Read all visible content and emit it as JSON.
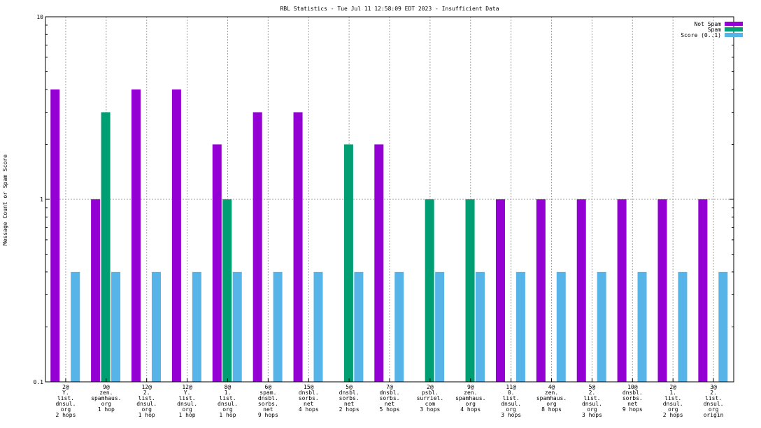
{
  "chart_data": {
    "type": "bar",
    "title": "RBL Statistics - Tue Jul 11 12:58:09 EDT 2023 - Insufficient Data",
    "xlabel": "",
    "ylabel": "Message Count or Spam Score",
    "yscale": "log",
    "ylim": [
      0.1,
      10
    ],
    "yticks": [
      "0.1",
      "1",
      "10"
    ],
    "grid": true,
    "legend_position": "top-right",
    "categories": [
      [
        "2@",
        "Y.",
        "list.",
        "dnsul.",
        "org",
        "2 hops"
      ],
      [
        "9@",
        "zen.",
        "spamhaus.",
        "org",
        "1 hop"
      ],
      [
        "12@",
        "2.",
        "list.",
        "dnsul.",
        "org",
        "1 hop"
      ],
      [
        "12@",
        "Y.",
        "list.",
        "dnsul.",
        "org",
        "1 hop"
      ],
      [
        "8@",
        "1.",
        "list.",
        "dnsul.",
        "org",
        "1 hop"
      ],
      [
        "6@",
        "spam.",
        "dnsbl.",
        "sorbs.",
        "net",
        "9 hops"
      ],
      [
        "15@",
        "dnsbl.",
        "sorbs.",
        "net",
        "4 hops"
      ],
      [
        "5@",
        "dnsbl.",
        "sorbs.",
        "net",
        "2 hops"
      ],
      [
        "7@",
        "dnsbl.",
        "sorbs.",
        "net",
        "5 hops"
      ],
      [
        "2@",
        "psbl.",
        "surriel.",
        "com",
        "3 hops"
      ],
      [
        "9@",
        "zen.",
        "spamhaus.",
        "org",
        "4 hops"
      ],
      [
        "11@",
        "0.",
        "list.",
        "dnsul.",
        "org",
        "3 hops"
      ],
      [
        "4@",
        "zen.",
        "spamhaus.",
        "org",
        "8 hops"
      ],
      [
        "5@",
        "2.",
        "list.",
        "dnsul.",
        "org",
        "3 hops"
      ],
      [
        "10@",
        "dnsbl.",
        "sorbs.",
        "net",
        "9 hops"
      ],
      [
        "2@",
        "1.",
        "list.",
        "dnsul.",
        "org",
        "2 hops"
      ],
      [
        "3@",
        "2.",
        "list.",
        "dnsul.",
        "org",
        "origin"
      ]
    ],
    "series": [
      {
        "name": "Not Spam",
        "color": "#9400d3",
        "values": [
          4,
          1,
          4,
          4,
          2,
          3,
          3,
          null,
          2,
          null,
          null,
          1,
          1,
          1,
          1,
          1,
          1
        ]
      },
      {
        "name": "Spam",
        "color": "#009e73",
        "values": [
          null,
          3,
          null,
          null,
          1,
          null,
          null,
          2,
          null,
          1,
          1,
          null,
          null,
          null,
          null,
          null,
          null
        ]
      },
      {
        "name": "Score (0..1)",
        "color": "#56b4e9",
        "values": [
          0.4,
          0.4,
          0.4,
          0.4,
          0.4,
          0.4,
          0.4,
          0.4,
          0.4,
          0.4,
          0.4,
          0.4,
          0.4,
          0.4,
          0.4,
          0.4,
          0.4
        ]
      }
    ]
  }
}
